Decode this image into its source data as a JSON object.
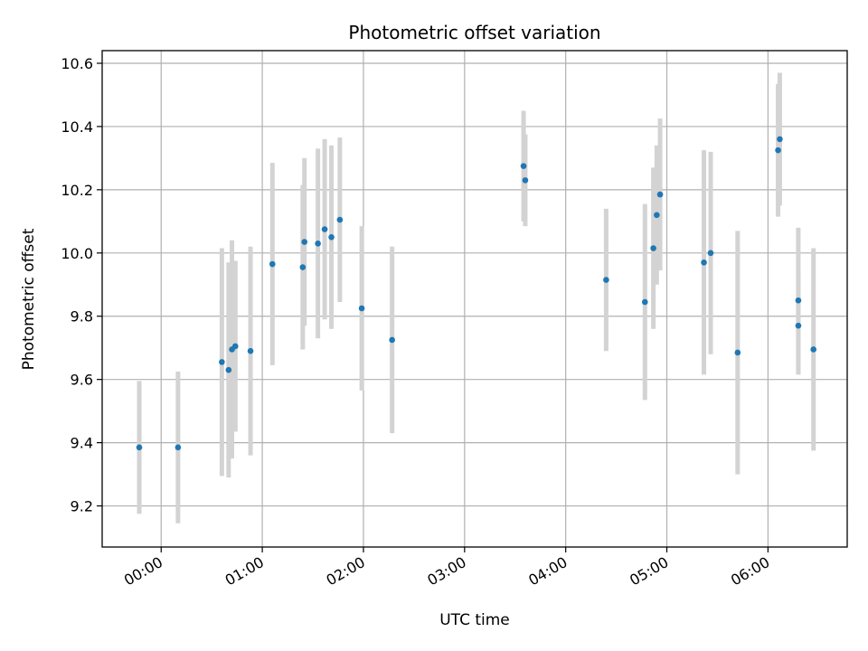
{
  "chart_data": {
    "type": "scatter",
    "title": "Photometric offset variation",
    "xlabel": "UTC time",
    "ylabel": "Photometric offset",
    "x_unit": "hh:mm UTC",
    "xlim": [
      "23:25",
      "06:47"
    ],
    "ylim": [
      9.07,
      10.64
    ],
    "grid": true,
    "x_tick_labels": [
      "00:00",
      "01:00",
      "02:00",
      "03:00",
      "04:00",
      "05:00",
      "06:00"
    ],
    "y_ticks": [
      9.2,
      9.4,
      9.6,
      9.8,
      10.0,
      10.2,
      10.4,
      10.6
    ],
    "y_tick_labels": [
      "9.2",
      "9.4",
      "9.6",
      "9.8",
      "10.0",
      "10.2",
      "10.4",
      "10.6"
    ],
    "marker_color": "#1f77b4",
    "errorbar_color": "#d3d3d3",
    "points": [
      {
        "x": "23:47",
        "y": 9.385,
        "err": 0.21
      },
      {
        "x": "00:10",
        "y": 9.385,
        "err": 0.24
      },
      {
        "x": "00:36",
        "y": 9.655,
        "err": 0.36
      },
      {
        "x": "00:40",
        "y": 9.63,
        "err": 0.34
      },
      {
        "x": "00:42",
        "y": 9.695,
        "err": 0.345
      },
      {
        "x": "00:44",
        "y": 9.705,
        "err": 0.27
      },
      {
        "x": "00:53",
        "y": 9.69,
        "err": 0.33
      },
      {
        "x": "01:06",
        "y": 9.965,
        "err": 0.32
      },
      {
        "x": "01:24",
        "y": 9.955,
        "err": 0.26
      },
      {
        "x": "01:25",
        "y": 10.035,
        "err": 0.265
      },
      {
        "x": "01:33",
        "y": 10.03,
        "err": 0.3
      },
      {
        "x": "01:37",
        "y": 10.075,
        "err": 0.285
      },
      {
        "x": "01:41",
        "y": 10.05,
        "err": 0.29
      },
      {
        "x": "01:46",
        "y": 10.105,
        "err": 0.26
      },
      {
        "x": "01:59",
        "y": 9.825,
        "err": 0.26
      },
      {
        "x": "02:17",
        "y": 9.725,
        "err": 0.295
      },
      {
        "x": "03:35",
        "y": 10.275,
        "err": 0.175
      },
      {
        "x": "03:36",
        "y": 10.23,
        "err": 0.145
      },
      {
        "x": "04:24",
        "y": 9.915,
        "err": 0.225
      },
      {
        "x": "04:47",
        "y": 9.845,
        "err": 0.31
      },
      {
        "x": "04:52",
        "y": 10.015,
        "err": 0.255
      },
      {
        "x": "04:54",
        "y": 10.12,
        "err": 0.22
      },
      {
        "x": "04:56",
        "y": 10.185,
        "err": 0.24
      },
      {
        "x": "05:22",
        "y": 9.97,
        "err": 0.355
      },
      {
        "x": "05:26",
        "y": 10.0,
        "err": 0.32
      },
      {
        "x": "05:42",
        "y": 9.685,
        "err": 0.385
      },
      {
        "x": "06:06",
        "y": 10.325,
        "err": 0.21
      },
      {
        "x": "06:07",
        "y": 10.36,
        "err": 0.21
      },
      {
        "x": "06:18",
        "y": 9.77,
        "err": 0.155
      },
      {
        "x": "06:18",
        "y": 9.85,
        "err": 0.23
      },
      {
        "x": "06:27",
        "y": 9.695,
        "err": 0.32
      }
    ]
  }
}
